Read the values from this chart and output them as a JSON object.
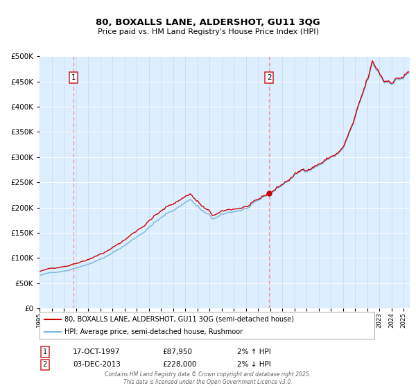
{
  "title1": "80, BOXALLS LANE, ALDERSHOT, GU11 3QG",
  "title2": "Price paid vs. HM Land Registry's House Price Index (HPI)",
  "legend_line1": "80, BOXALLS LANE, ALDERSHOT, GU11 3QG (semi-detached house)",
  "legend_line2": "HPI: Average price, semi-detached house, Rushmoor",
  "annotation1_date": "17-OCT-1997",
  "annotation1_price": "£87,950",
  "annotation1_hpi": "2% ↑ HPI",
  "annotation2_date": "03-DEC-2013",
  "annotation2_price": "£228,000",
  "annotation2_hpi": "2% ↓ HPI",
  "footer": "Contains HM Land Registry data © Crown copyright and database right 2025.\nThis data is licensed under the Open Government Licence v3.0.",
  "hpi_color": "#7ab8d9",
  "price_color": "#cc0000",
  "dot_color": "#cc0000",
  "vline_color": "#ff8888",
  "plot_bg": "#ddeeff",
  "ylim": [
    0,
    500000
  ],
  "yticks": [
    0,
    50000,
    100000,
    150000,
    200000,
    250000,
    300000,
    350000,
    400000,
    450000,
    500000
  ],
  "purchase1_x": 1997.79,
  "purchase1_y": 87950,
  "purchase2_x": 2013.92,
  "purchase2_y": 228000,
  "xmin": 1995.0,
  "xmax": 2025.5
}
